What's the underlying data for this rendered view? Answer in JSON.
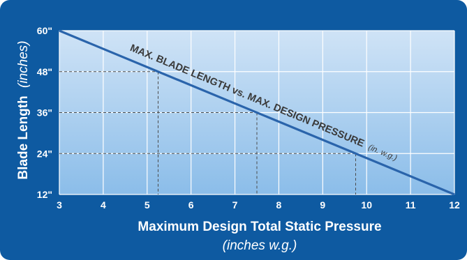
{
  "chart_data": {
    "type": "line",
    "title": "",
    "xlabel": "Maximum Design Total Static Pressure",
    "xlabel_sub": "(inches w.g.)",
    "ylabel": "Blade Length",
    "ylabel_sub": "(inches)",
    "xlim": [
      3,
      12
    ],
    "ylim": [
      12,
      60
    ],
    "x_ticks": [
      3,
      4,
      5,
      6,
      7,
      8,
      9,
      10,
      11,
      12
    ],
    "x_tick_labels": [
      "3",
      "4",
      "5",
      "6",
      "7",
      "8",
      "9",
      "10",
      "11",
      "12"
    ],
    "y_ticks": [
      12,
      24,
      36,
      48,
      60
    ],
    "y_tick_labels": [
      "12\"",
      "24\"",
      "36\"",
      "48\"",
      "60\""
    ],
    "grid": true,
    "series": [
      {
        "name": "MAX. BLADE LENGTH vs. MAX. DESIGN PRESSURE",
        "name_suffix": "(in. w.g.)",
        "x": [
          3,
          12
        ],
        "y": [
          60,
          12
        ]
      }
    ],
    "reference_points": [
      {
        "x": 5.25,
        "y": 48
      },
      {
        "x": 7.5,
        "y": 36
      },
      {
        "x": 9.75,
        "y": 24
      }
    ],
    "colors": {
      "frame": "#0e5aa1",
      "plot_top": "#cfe3f6",
      "plot_bottom": "#8bbde9",
      "line": "#2a64ab",
      "grid": "#ffffff",
      "tick_text": "#ffffff",
      "annotation_text": "#3a3a3a"
    }
  }
}
